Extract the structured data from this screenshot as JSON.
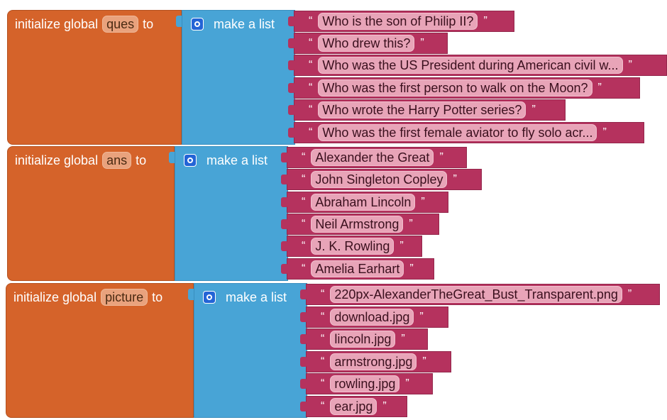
{
  "blocks": [
    {
      "init_label": "initialize global",
      "var_name": "ques",
      "to_label": "to",
      "list_label": "make a list",
      "items": [
        "Who is the son of Philip II?",
        "Who drew this?",
        "Who was the US President during American civil w...",
        "Who was the first person to walk on the Moon?",
        "Who wrote the Harry Potter series?",
        "Who was the first female aviator to fly solo acr..."
      ]
    },
    {
      "init_label": "initialize global",
      "var_name": "ans",
      "to_label": "to",
      "list_label": "make a list",
      "items": [
        "Alexander the Great",
        "John Singleton Copley",
        "Abraham Lincoln",
        "Neil Armstrong",
        "J. K. Rowling",
        "Amelia Earhart"
      ]
    },
    {
      "init_label": "initialize global",
      "var_name": "picture",
      "to_label": "to",
      "list_label": "make a list",
      "items": [
        "220px-AlexanderTheGreat_Bust_Transparent.png",
        "download.jpg",
        "lincoln.jpg",
        "armstrong.jpg",
        "rowling.jpg",
        "ear.jpg"
      ]
    }
  ],
  "quote_open": "“",
  "quote_close": "”",
  "colors": {
    "variables": "#d5632a",
    "lists": "#48a4d6",
    "text": "#b5325e"
  },
  "icons": {
    "mutator": "gear-icon"
  }
}
